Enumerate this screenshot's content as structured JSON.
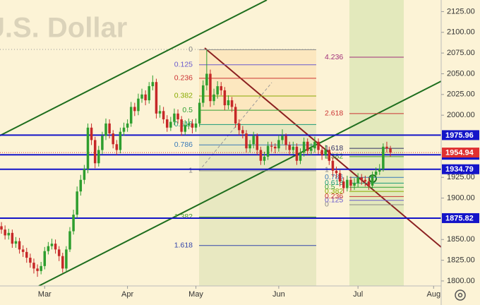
{
  "chart_data": {
    "type": "candlestick",
    "title": "U.S. Dollar",
    "up_color": "#2e9e2e",
    "down_color": "#c62828",
    "open": [
      1866,
      1862,
      1855,
      1858,
      1845,
      1848,
      1838,
      1835,
      1828,
      1822,
      1815,
      1812,
      1818,
      1836,
      1842,
      1845,
      1838,
      1830,
      1815,
      1838,
      1860,
      1880,
      1908,
      1922,
      1935,
      1985,
      1970,
      1942,
      1958,
      1975,
      1990,
      1978,
      1965,
      1958,
      1980,
      1985,
      1990,
      2010,
      2005,
      2020,
      2025,
      2018,
      2035,
      2040,
      2002,
      2005,
      1995,
      1985,
      1992,
      2002,
      1995,
      1980,
      1988,
      1990,
      1985,
      1990,
      2015,
      2036,
      2050,
      2017,
      2025,
      2035,
      2030,
      2012,
      2018,
      2010,
      1990,
      1982,
      1978,
      1960,
      1965,
      1975,
      1958,
      1945,
      1950,
      1963,
      1962,
      1960,
      1970,
      1975,
      1964,
      1958,
      1962,
      1945,
      1955,
      1968,
      1957,
      1960,
      1968,
      1958,
      1952,
      1958,
      1945,
      1933,
      1930,
      1920,
      1912,
      1922,
      1915,
      1918,
      1925,
      1922,
      1920,
      1915,
      1928,
      1932,
      1935,
      1962,
      1960
    ],
    "high": [
      1871,
      1867,
      1863,
      1862,
      1853,
      1852,
      1843,
      1840,
      1833,
      1827,
      1820,
      1823,
      1841,
      1847,
      1851,
      1850,
      1842,
      1834,
      1842,
      1865,
      1886,
      1914,
      1928,
      1940,
      1990,
      1990,
      1974,
      1963,
      1980,
      1996,
      1995,
      1982,
      1970,
      1985,
      1991,
      1995,
      2016,
      2015,
      2026,
      2032,
      2030,
      2040,
      2048,
      2044,
      2012,
      2010,
      2000,
      1998,
      2008,
      2007,
      1999,
      1994,
      1996,
      1995,
      1996,
      2020,
      2042,
      2079,
      2055,
      2032,
      2041,
      2040,
      2034,
      2024,
      2022,
      2014,
      1995,
      1987,
      1982,
      1970,
      1980,
      1978,
      1962,
      1956,
      1968,
      1968,
      1966,
      1976,
      1983,
      1978,
      1968,
      1968,
      1966,
      1960,
      1973,
      1972,
      1966,
      1974,
      1972,
      1962,
      1964,
      1962,
      1949,
      1938,
      1934,
      1925,
      1927,
      1926,
      1924,
      1930,
      1929,
      1927,
      1925,
      1932,
      1937,
      1941,
      1966,
      1968,
      1963
    ],
    "low": [
      1857,
      1850,
      1850,
      1840,
      1840,
      1833,
      1829,
      1822,
      1816,
      1809,
      1805,
      1808,
      1814,
      1832,
      1838,
      1833,
      1824,
      1810,
      1812,
      1835,
      1856,
      1876,
      1903,
      1917,
      1930,
      1964,
      1936,
      1938,
      1953,
      1970,
      1972,
      1960,
      1952,
      1954,
      1975,
      1980,
      1986,
      1999,
      2000,
      2015,
      2012,
      2014,
      2030,
      1996,
      1997,
      1990,
      1980,
      1981,
      1988,
      1990,
      1975,
      1976,
      1983,
      1978,
      1980,
      1986,
      2010,
      2030,
      2010,
      2012,
      2020,
      2024,
      2006,
      2007,
      2004,
      1985,
      1976,
      1972,
      1955,
      1955,
      1960,
      1952,
      1940,
      1940,
      1946,
      1956,
      1954,
      1956,
      1965,
      1958,
      1952,
      1953,
      1940,
      1941,
      1950,
      1952,
      1952,
      1955,
      1953,
      1946,
      1948,
      1940,
      1926,
      1924,
      1914,
      1906,
      1908,
      1909,
      1910,
      1913,
      1916,
      1914,
      1910,
      1911,
      1923,
      1928,
      1932,
      1955,
      1950
    ],
    "close": [
      1862,
      1855,
      1858,
      1845,
      1848,
      1838,
      1835,
      1828,
      1822,
      1815,
      1812,
      1818,
      1836,
      1842,
      1845,
      1838,
      1830,
      1815,
      1838,
      1860,
      1880,
      1908,
      1922,
      1935,
      1985,
      1970,
      1942,
      1958,
      1975,
      1990,
      1978,
      1965,
      1958,
      1980,
      1985,
      1990,
      2010,
      2005,
      2020,
      2025,
      2018,
      2035,
      2040,
      2002,
      2005,
      1995,
      1985,
      1992,
      2002,
      1995,
      1980,
      1988,
      1990,
      1985,
      1990,
      2015,
      2036,
      2050,
      2017,
      2025,
      2035,
      2030,
      2012,
      2018,
      2010,
      1990,
      1982,
      1978,
      1960,
      1965,
      1975,
      1958,
      1945,
      1950,
      1963,
      1962,
      1960,
      1970,
      1975,
      1964,
      1958,
      1962,
      1945,
      1955,
      1968,
      1957,
      1960,
      1968,
      1958,
      1952,
      1958,
      1945,
      1933,
      1930,
      1920,
      1912,
      1922,
      1915,
      1918,
      1925,
      1922,
      1920,
      1915,
      1928,
      1932,
      1935,
      1962,
      1960,
      1955
    ],
    "ylim": [
      1794,
      2139
    ],
    "yticks": [
      {
        "value": 2125,
        "label": "2125.00"
      },
      {
        "value": 2100,
        "label": "2100.00"
      },
      {
        "value": 2075,
        "label": "2075.00"
      },
      {
        "value": 2050,
        "label": "2050.00"
      },
      {
        "value": 2025,
        "label": "2025.00"
      },
      {
        "value": 2000,
        "label": "2000.00"
      },
      {
        "value": 1925,
        "label": "1925.00"
      },
      {
        "value": 1900,
        "label": "1900.00"
      },
      {
        "value": 1850,
        "label": "1850.00"
      },
      {
        "value": 1825,
        "label": "1825.00"
      },
      {
        "value": 1800,
        "label": "1800.00"
      }
    ],
    "xlim": [
      -0.4,
      122.1
    ],
    "xticks": [
      {
        "value": 12,
        "label": "Mar"
      },
      {
        "value": 35,
        "label": "Apr"
      },
      {
        "value": 54,
        "label": "May"
      },
      {
        "value": 77,
        "label": "Jun"
      },
      {
        "value": 99,
        "label": "Jul"
      },
      {
        "value": 120,
        "label": "Aug"
      }
    ],
    "levels": [
      {
        "value": 1975.96,
        "color": "#1414c8"
      },
      {
        "value": 1952.27,
        "color": "#1414c8"
      },
      {
        "value": 1934.79,
        "color": "#1414c8"
      },
      {
        "value": 1875.82,
        "color": "#1414c8"
      }
    ],
    "last_price": {
      "value": 1954.94,
      "color": "#e03030"
    },
    "fib_retracements": [
      {
        "levels": [
          {
            "label": "0",
            "value": 2079,
            "color": "#888888"
          },
          {
            "label": "0.125",
            "value": 2060.8,
            "color": "#6a5acd"
          },
          {
            "label": "0.236",
            "value": 2044.5,
            "color": "#cc3333"
          },
          {
            "label": "0.382",
            "value": 2023.2,
            "color": "#88aa00"
          },
          {
            "label": "0.5",
            "value": 2006,
            "color": "#33a033"
          },
          {
            "label": "0.618",
            "value": 1988.8,
            "color": "#1a9a7a"
          },
          {
            "label": "0.786",
            "value": 1964.2,
            "color": "#3a7ab8"
          },
          {
            "label": "1",
            "value": 1933,
            "color": "#888888"
          },
          {
            "label": "1.382",
            "value": 1877.2,
            "color": "#4a9a30"
          },
          {
            "label": "1.618",
            "value": 1842.8,
            "color": "#3344aa"
          }
        ]
      },
      {
        "levels": [
          {
            "label": "0",
            "value": 1892,
            "color": "#888888"
          },
          {
            "label": "0.125",
            "value": 1897.3,
            "color": "#6a5acd"
          },
          {
            "label": "0.236",
            "value": 1901.9,
            "color": "#cc3333"
          },
          {
            "label": "0.382",
            "value": 1908,
            "color": "#88aa00"
          },
          {
            "label": "0.5",
            "value": 1913,
            "color": "#33a033"
          },
          {
            "label": "0.618",
            "value": 1918,
            "color": "#1a9a7a"
          },
          {
            "label": "0.786",
            "value": 1925,
            "color": "#3a7ab8"
          },
          {
            "label": "1",
            "value": 1934,
            "color": "#888888"
          },
          {
            "label": "1.382",
            "value": 1950,
            "color": "#4a9a30"
          },
          {
            "label": "1.618",
            "value": 1960,
            "color": "#333366"
          },
          {
            "label": "2.618",
            "value": 2002,
            "color": "#cc3333"
          },
          {
            "label": "4.236",
            "value": 2070,
            "color": "#a0307a"
          }
        ]
      }
    ]
  }
}
